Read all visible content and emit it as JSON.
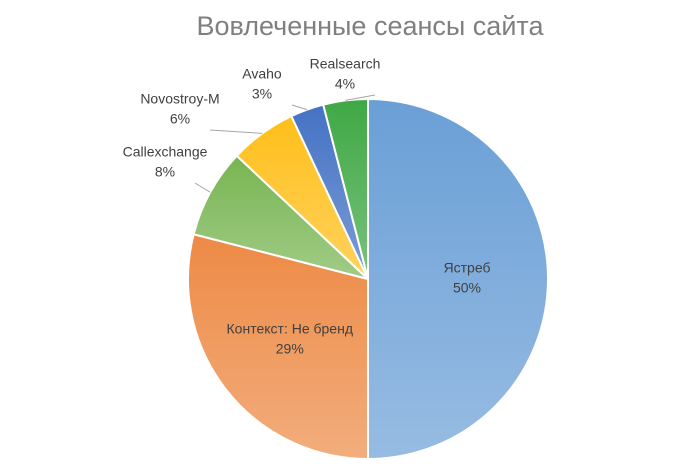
{
  "chart_data": {
    "type": "pie",
    "title": "Вовлеченные сеансы сайта",
    "categories": [
      "Ястреб",
      "Контекст: Не бренд",
      "Callexchange",
      "Novostroy-M",
      "Avaho",
      "Realsearch"
    ],
    "values": [
      50,
      29,
      8,
      6,
      3,
      4
    ],
    "value_labels": [
      "50%",
      "29%",
      "8%",
      "6%",
      "3%",
      "4%"
    ],
    "colors": [
      "#6a9fd6",
      "#ed8a45",
      "#78b552",
      "#ffbf1a",
      "#4472c4",
      "#3fa845"
    ]
  }
}
